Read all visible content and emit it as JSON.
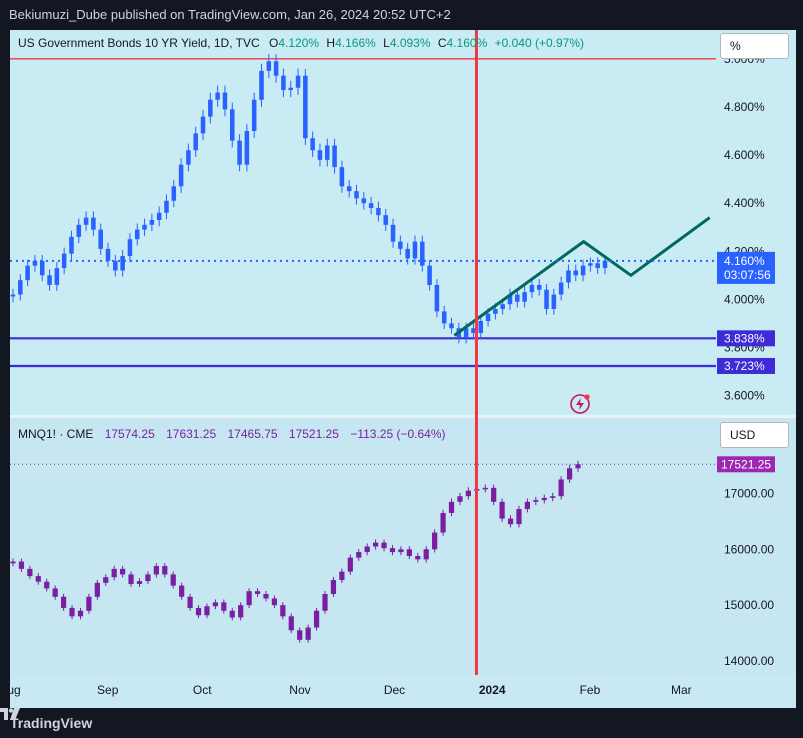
{
  "header": {
    "publisher": "Bekiumuzi_Dube published on TradingView.com, Jan 26, 2024 20:52 UTC+2"
  },
  "footer": {
    "brand": "TradingView"
  },
  "colors": {
    "up_blue": "#2962ff",
    "up_purple": "#7b1fa2",
    "red_line": "#f23645",
    "blue_line": "#3d2bd6",
    "teal": "#00695c",
    "bg": "#c8eaf2"
  },
  "chart_data": [
    {
      "type": "candlestick",
      "legend": {
        "symbol": "US Government Bonds 10 YR Yield, 1D, TVC",
        "o_label": "O",
        "o": "4.120%",
        "h_label": "H",
        "h": "4.166%",
        "l_label": "L",
        "l": "4.093%",
        "c_label": "C",
        "c": "4.160%",
        "change": "+0.040 (+0.97%)"
      },
      "unit": "%",
      "y_ticks": [
        "5.000%",
        "4.800%",
        "4.600%",
        "4.400%",
        "4.200%",
        "4.000%",
        "3.800%",
        "3.600%"
      ],
      "y_tick_values": [
        5.0,
        4.8,
        4.6,
        4.4,
        4.2,
        4.0,
        3.8,
        3.6
      ],
      "ylim": [
        3.515,
        5.12
      ],
      "price_label": "4.160%",
      "price_value": 4.16,
      "countdown": "03:07:56",
      "levels": [
        {
          "label": "",
          "value": 5.0,
          "color": "#f23645"
        },
        {
          "label": "3.838%",
          "value": 3.838,
          "color": "#3d2bd6"
        },
        {
          "label": "3.723%",
          "value": 3.723,
          "color": "#3d2bd6"
        }
      ],
      "close_series": [
        4.02,
        4.08,
        4.14,
        4.16,
        4.1,
        4.06,
        4.13,
        4.19,
        4.26,
        4.31,
        4.34,
        4.29,
        4.21,
        4.16,
        4.12,
        4.18,
        4.25,
        4.29,
        4.31,
        4.33,
        4.36,
        4.41,
        4.47,
        4.56,
        4.62,
        4.69,
        4.76,
        4.83,
        4.86,
        4.79,
        4.66,
        4.56,
        4.7,
        4.83,
        4.95,
        4.99,
        4.93,
        4.87,
        4.88,
        4.93,
        4.67,
        4.62,
        4.58,
        4.64,
        4.55,
        4.47,
        4.45,
        4.42,
        4.4,
        4.38,
        4.35,
        4.31,
        4.24,
        4.21,
        4.17,
        4.24,
        4.14,
        4.06,
        3.95,
        3.9,
        3.88,
        3.84,
        3.88,
        3.86,
        3.91,
        3.94,
        3.96,
        3.98,
        4.02,
        3.99,
        4.03,
        4.06,
        4.04,
        3.96,
        4.02,
        4.07,
        4.12,
        4.1,
        4.14,
        4.15,
        4.13,
        4.16
      ],
      "projection": [
        {
          "date": "2023-12-20",
          "value": 3.85
        },
        {
          "date": "2024-01-30",
          "value": 4.24
        },
        {
          "date": "2024-02-14",
          "value": 4.1
        },
        {
          "date": "2024-03-10",
          "value": 4.34
        }
      ]
    },
    {
      "type": "candlestick",
      "legend": {
        "symbol": "MNQ1! · CME",
        "o": "17574.25",
        "h": "17631.25",
        "l": "17465.75",
        "c": "17521.25",
        "change": "−113.25 (−0.64%)"
      },
      "unit": "USD",
      "y_ticks": [
        "17000.00",
        "16000.00",
        "15000.00",
        "14000.00"
      ],
      "y_tick_values": [
        17000,
        16000,
        15000,
        14000
      ],
      "ylim": [
        13750,
        18350
      ],
      "price_label": "17521.25",
      "price_value": 17521.25,
      "close_series": [
        15780,
        15650,
        15520,
        15420,
        15300,
        15150,
        14950,
        14800,
        14900,
        15150,
        15400,
        15500,
        15650,
        15550,
        15380,
        15430,
        15550,
        15700,
        15550,
        15350,
        15150,
        14950,
        14820,
        14980,
        15050,
        14900,
        14780,
        15000,
        15250,
        15200,
        15120,
        15000,
        14800,
        14550,
        14380,
        14600,
        14900,
        15200,
        15450,
        15600,
        15850,
        15950,
        16050,
        16120,
        16020,
        15950,
        16000,
        15880,
        15820,
        16000,
        16300,
        16650,
        16850,
        16950,
        17050,
        17080,
        17100,
        16850,
        16550,
        16450,
        16720,
        16850,
        16880,
        16920,
        16950,
        17250,
        17450,
        17521
      ]
    }
  ],
  "x_axis": {
    "labels": [
      "Aug",
      "Sep",
      "Oct",
      "Nov",
      "Dec",
      "2024",
      "Feb",
      "Mar"
    ]
  }
}
